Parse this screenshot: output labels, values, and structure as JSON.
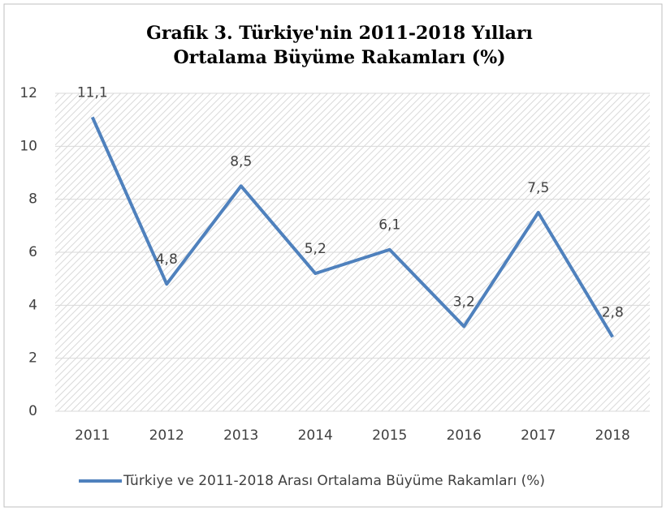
{
  "chart_data": {
    "type": "line",
    "title_lines": [
      "Grafik 3. Türkiye'nin 2011-2018 Yılları",
      "Ortalama Büyüme Rakamları (%)"
    ],
    "categories": [
      "2011",
      "2012",
      "2013",
      "2014",
      "2015",
      "2016",
      "2017",
      "2018"
    ],
    "series": [
      {
        "name": "Türkiye ve 2011-2018 Arası Ortalama Büyüme Rakamları  (%)",
        "color": "#4f81bd",
        "values": [
          11.1,
          4.8,
          8.5,
          5.2,
          6.1,
          3.2,
          7.5,
          2.8
        ],
        "value_labels": [
          "11,1",
          "4,8",
          "8,5",
          "5,2",
          "6,1",
          "3,2",
          "7,5",
          "2,8"
        ]
      }
    ],
    "ylim": [
      0,
      12
    ],
    "yticks": [
      0,
      2,
      4,
      6,
      8,
      10,
      12
    ],
    "grid": true,
    "legend": "bottom"
  }
}
